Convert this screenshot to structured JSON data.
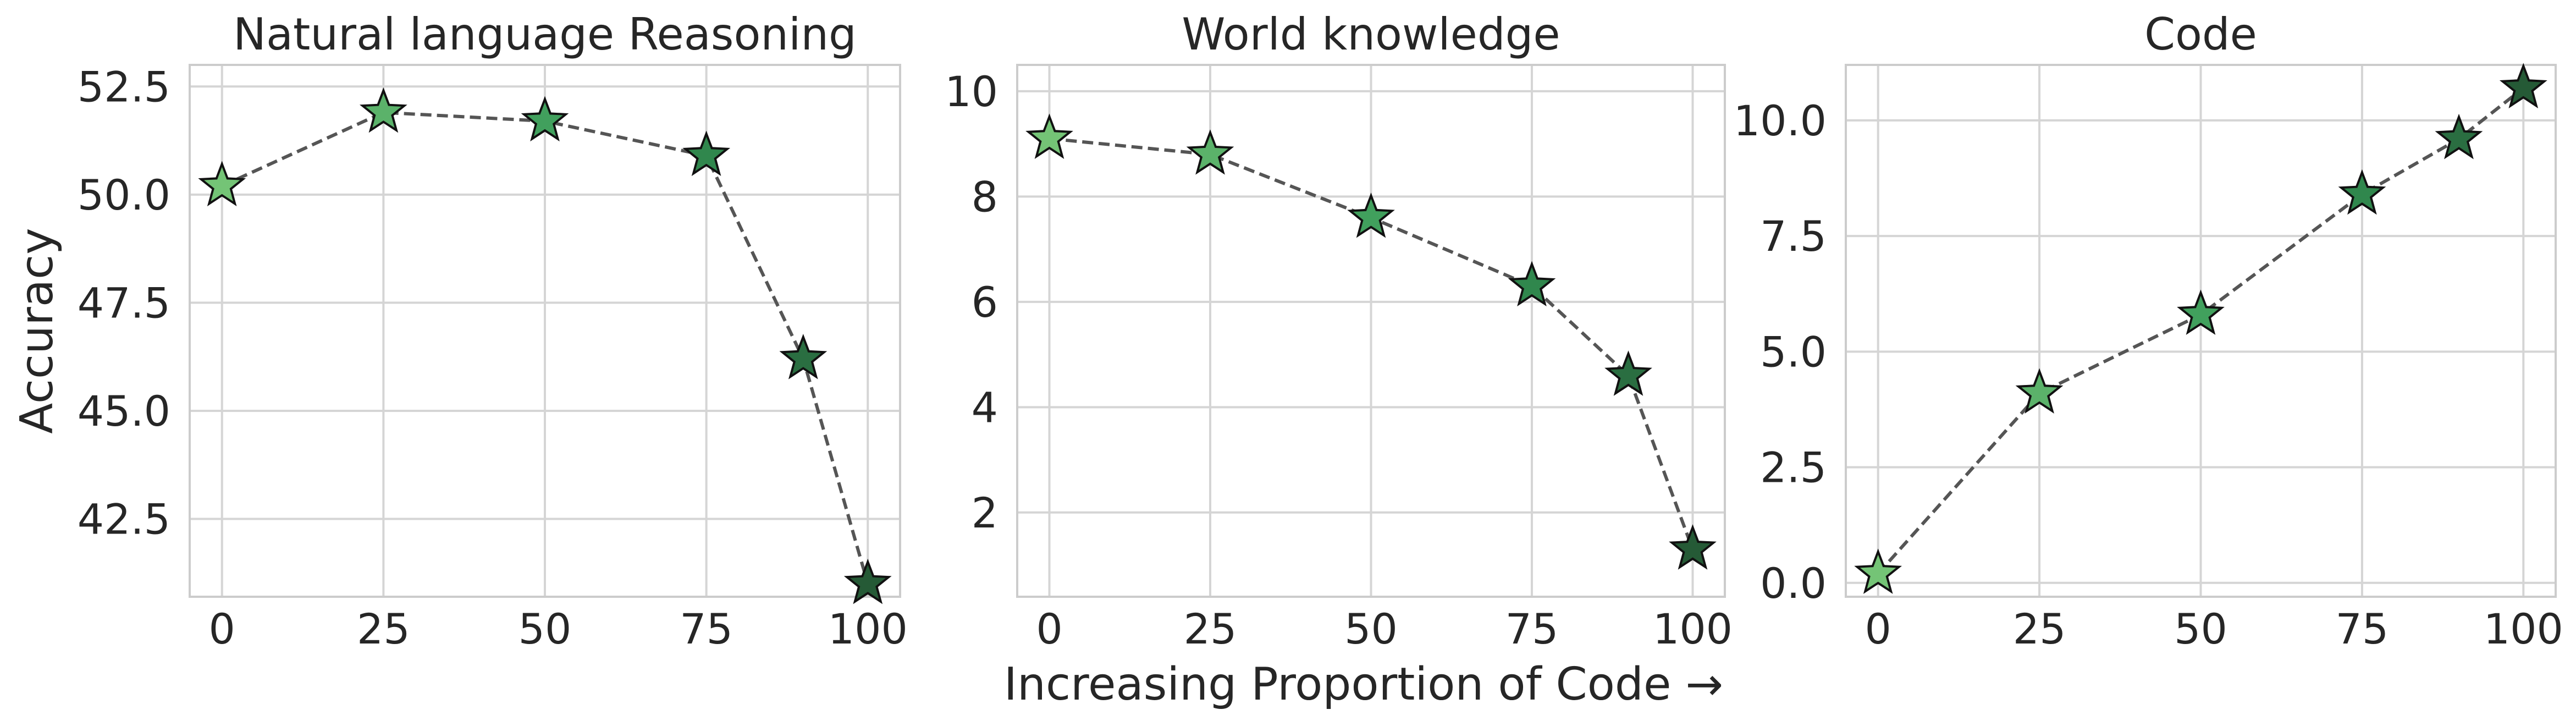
{
  "chart_data": [
    {
      "type": "line",
      "title": "Natural language Reasoning",
      "ylabel": "Accuracy",
      "x": [
        0,
        25,
        50,
        75,
        90,
        100
      ],
      "series": [
        {
          "values": [
            50.2,
            51.9,
            51.7,
            50.9,
            46.2,
            41.0
          ]
        }
      ],
      "xticks": [
        0,
        25,
        50,
        75,
        100
      ],
      "xtick_labels": [
        "0",
        "25",
        "50",
        "75",
        "100"
      ],
      "yticks": [
        42.5,
        45.0,
        47.5,
        50.0,
        52.5
      ],
      "ytick_labels": [
        "42.5",
        "45.0",
        "47.5",
        "50.0",
        "52.5"
      ],
      "xlim": [
        -5,
        105
      ],
      "ylim": [
        40.7,
        53.0
      ],
      "grid": true,
      "line_style": "dashed",
      "marker": "star",
      "marker_colors": [
        "#74c476",
        "#5bb26a",
        "#41a05d",
        "#30874d",
        "#2a6e41",
        "#255a36"
      ]
    },
    {
      "type": "line",
      "title": "World knowledge",
      "x": [
        0,
        25,
        50,
        75,
        90,
        100
      ],
      "series": [
        {
          "values": [
            9.1,
            8.8,
            7.6,
            6.3,
            4.6,
            1.3
          ]
        }
      ],
      "xticks": [
        0,
        25,
        50,
        75,
        100
      ],
      "xtick_labels": [
        "0",
        "25",
        "50",
        "75",
        "100"
      ],
      "yticks": [
        2,
        4,
        6,
        8,
        10
      ],
      "ytick_labels": [
        "2",
        "4",
        "6",
        "8",
        "10"
      ],
      "xlim": [
        -5,
        105
      ],
      "ylim": [
        0.4,
        10.5
      ],
      "grid": true,
      "line_style": "dashed",
      "marker": "star",
      "marker_colors": [
        "#74c476",
        "#5bb26a",
        "#41a05d",
        "#30874d",
        "#2a6e41",
        "#255a36"
      ]
    },
    {
      "type": "line",
      "title": "Code",
      "x": [
        0,
        25,
        50,
        75,
        90,
        100
      ],
      "series": [
        {
          "values": [
            0.2,
            4.1,
            5.8,
            8.4,
            9.6,
            10.7
          ]
        }
      ],
      "xticks": [
        0,
        25,
        50,
        75,
        100
      ],
      "xtick_labels": [
        "0",
        "25",
        "50",
        "75",
        "100"
      ],
      "yticks": [
        0.0,
        2.5,
        5.0,
        7.5,
        10.0
      ],
      "ytick_labels": [
        "0.0",
        "2.5",
        "5.0",
        "7.5",
        "10.0"
      ],
      "xlim": [
        -5,
        105
      ],
      "ylim": [
        -0.3,
        11.2
      ],
      "grid": true,
      "line_style": "dashed",
      "marker": "star",
      "marker_colors": [
        "#74c476",
        "#5bb26a",
        "#41a05d",
        "#30874d",
        "#2a6e41",
        "#255a36"
      ]
    }
  ],
  "figure": {
    "shared_xlabel": "Increasing Proportion of Code →"
  },
  "colors": {
    "line": "#555555",
    "grid": "#d5d5d5",
    "frame": "#cccccc",
    "marker_edge": "#111111",
    "text": "#262626"
  }
}
